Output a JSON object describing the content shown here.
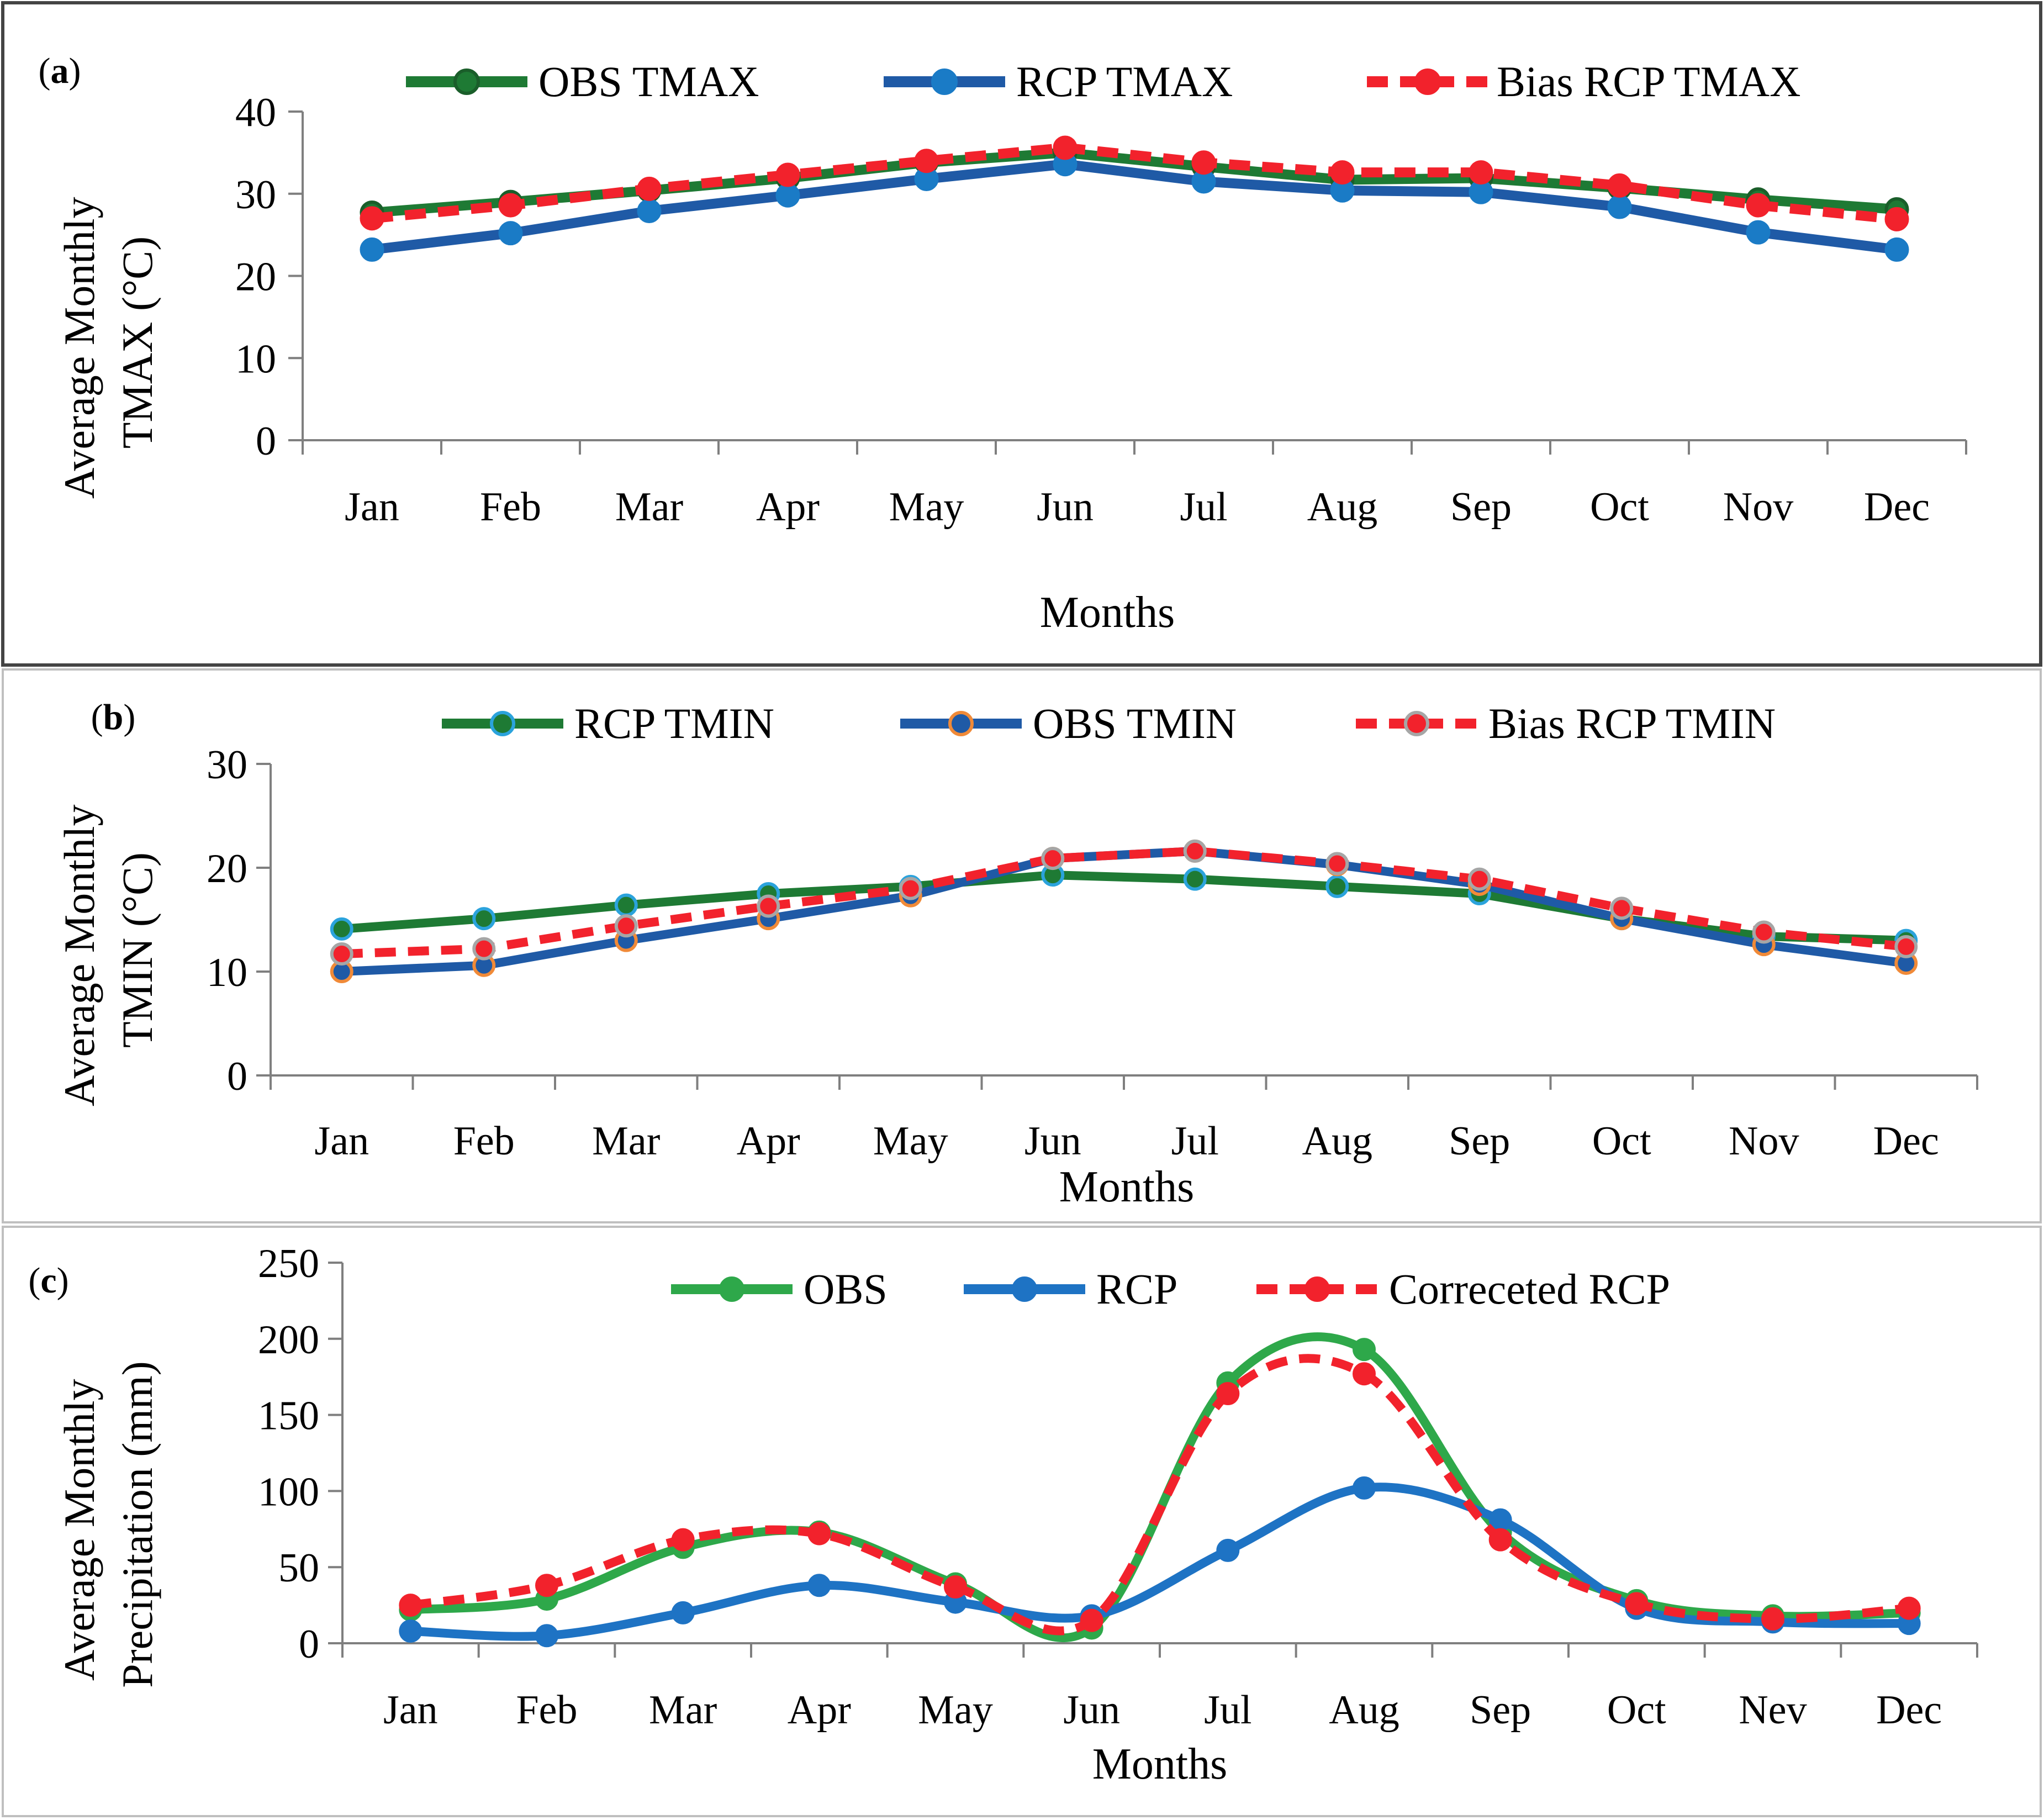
{
  "chart_data": [
    {
      "type": "line",
      "panel_label": "(a)",
      "xlabel": "Months",
      "ylabel": [
        "Average Monthly",
        "TMAX (°C)"
      ],
      "ylim": [
        0,
        40
      ],
      "yticks": [
        0,
        10,
        20,
        30,
        40
      ],
      "categories": [
        "Jan",
        "Feb",
        "Mar",
        "Apr",
        "May",
        "Jun",
        "Jul",
        "Aug",
        "Sep",
        "Oct",
        "Nov",
        "Dec"
      ],
      "legend_position": "top",
      "series": [
        {
          "name": "OBS TMAX",
          "color": "#1e7a34",
          "marker_fill": "#1e7a34",
          "marker_stroke": "#1a5e2a",
          "dashed": false,
          "smooth": false,
          "values": [
            27.7,
            29.0,
            30.4,
            31.9,
            33.8,
            35.0,
            33.3,
            31.7,
            31.9,
            30.7,
            29.3,
            28.1
          ]
        },
        {
          "name": "RCP TMAX",
          "color": "#1f5aa6",
          "marker_fill": "#1a7bc6",
          "marker_stroke": "#1a7bc6",
          "dashed": false,
          "smooth": false,
          "values": [
            23.2,
            25.2,
            27.9,
            29.8,
            31.8,
            33.6,
            31.5,
            30.4,
            30.2,
            28.4,
            25.3,
            23.2
          ]
        },
        {
          "name": "Bias RCP TMAX",
          "color": "#f2222c",
          "marker_fill": "#f2222c",
          "marker_stroke": "#f2222c",
          "dashed": true,
          "smooth": false,
          "values": [
            27.0,
            28.6,
            30.6,
            32.3,
            34.0,
            35.6,
            33.8,
            32.6,
            32.6,
            31.0,
            28.6,
            26.9
          ]
        }
      ]
    },
    {
      "type": "line",
      "panel_label": "(b)",
      "xlabel": "Months",
      "ylabel": [
        "Average Monthly",
        "TMIN (°C)"
      ],
      "ylim": [
        0,
        30
      ],
      "yticks": [
        0,
        10,
        20,
        30
      ],
      "categories": [
        "Jan",
        "Feb",
        "Mar",
        "Apr",
        "May",
        "Jun",
        "Jul",
        "Aug",
        "Sep",
        "Oct",
        "Nov",
        "Dec"
      ],
      "legend_position": "top",
      "series": [
        {
          "name": "RCP TMIN",
          "color": "#1e7a34",
          "marker_fill": "#1e7a34",
          "marker_stroke": "#2ba3dc",
          "dashed": false,
          "smooth": false,
          "values": [
            14.1,
            15.1,
            16.4,
            17.5,
            18.2,
            19.3,
            18.9,
            18.2,
            17.5,
            15.1,
            13.4,
            13.0
          ]
        },
        {
          "name": "OBS TMIN",
          "color": "#1f5aa6",
          "marker_fill": "#1f5aa6",
          "marker_stroke": "#f08a38",
          "dashed": false,
          "smooth": false,
          "values": [
            10.0,
            10.6,
            13.0,
            15.1,
            17.3,
            20.9,
            21.6,
            20.3,
            18.4,
            15.1,
            12.6,
            10.8
          ]
        },
        {
          "name": "Bias RCP TMIN",
          "color": "#f2222c",
          "marker_fill": "#f2222c",
          "marker_stroke": "#a6a6a6",
          "dashed": true,
          "smooth": false,
          "values": [
            11.7,
            12.2,
            14.4,
            16.3,
            18.0,
            20.9,
            21.6,
            20.4,
            18.9,
            16.1,
            13.8,
            12.4
          ]
        }
      ]
    },
    {
      "type": "line",
      "panel_label": "(c)",
      "xlabel": "Months",
      "ylabel": [
        "Average Monthly",
        "Precipitation (mm)"
      ],
      "ylim": [
        0,
        250
      ],
      "yticks": [
        0,
        50,
        100,
        150,
        200,
        250
      ],
      "categories": [
        "Jan",
        "Feb",
        "Mar",
        "Apr",
        "May",
        "Jun",
        "Jul",
        "Aug",
        "Sep",
        "Oct",
        "Nev",
        "Dec"
      ],
      "legend_position": "top",
      "series": [
        {
          "name": "OBS",
          "color": "#2ea84a",
          "marker_fill": "#2ea84a",
          "marker_stroke": "#2ea84a",
          "dashed": false,
          "smooth": true,
          "values": [
            22,
            29,
            63,
            73,
            39,
            10,
            171,
            193,
            73,
            28,
            18,
            20
          ]
        },
        {
          "name": "RCP",
          "color": "#1e73c4",
          "marker_fill": "#1e73c4",
          "marker_stroke": "#1e73c4",
          "dashed": false,
          "smooth": true,
          "values": [
            8,
            5,
            20,
            38,
            27,
            18,
            61,
            102,
            81,
            23,
            14,
            13
          ]
        },
        {
          "name": "Correceted RCP",
          "color": "#f2222c",
          "marker_fill": "#f2222c",
          "marker_stroke": "#f2222c",
          "dashed": true,
          "smooth": true,
          "values": [
            25,
            38,
            68,
            72,
            37,
            15,
            164,
            177,
            68,
            26,
            16,
            23
          ]
        }
      ]
    }
  ]
}
